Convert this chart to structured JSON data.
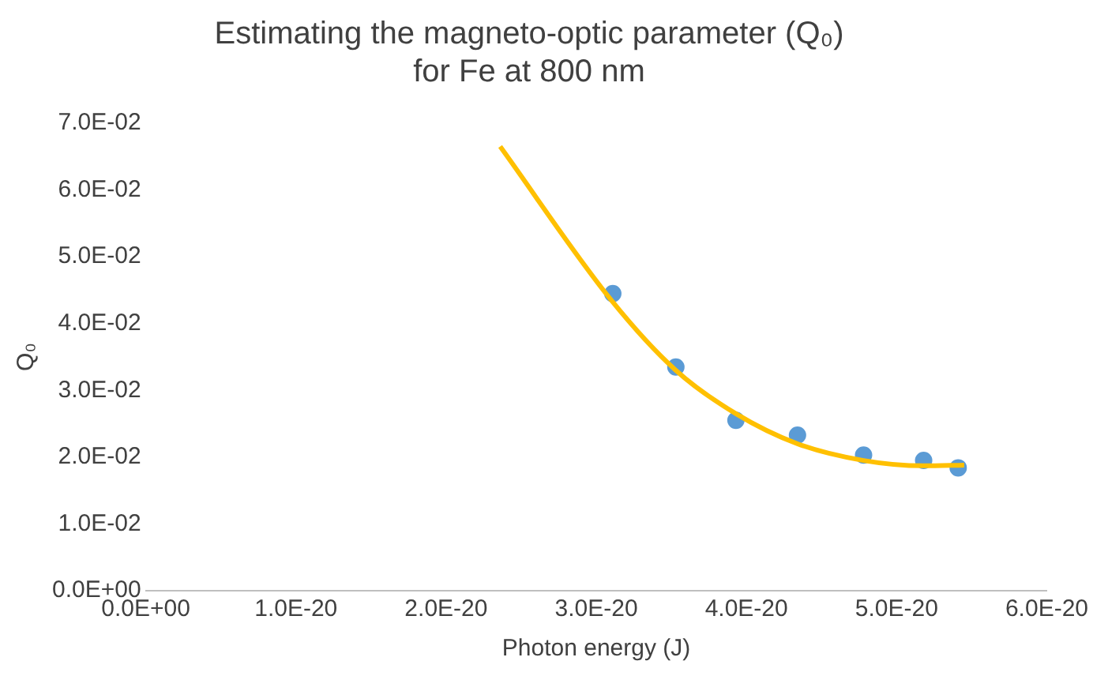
{
  "chart_data": {
    "type": "scatter",
    "title": "Estimating the magneto-optic parameter (Q₀) for Fe at 800 nm",
    "xlabel": "Photon energy (J)",
    "ylabel": "Q₀",
    "xlim": [
      0,
      6e-20
    ],
    "xticks": [
      {
        "value": 0,
        "label": "0.0E+00"
      },
      {
        "value": 1e-20,
        "label": "1.0E-20"
      },
      {
        "value": 2e-20,
        "label": "2.0E-20"
      },
      {
        "value": 3e-20,
        "label": "3.0E-20"
      },
      {
        "value": 4e-20,
        "label": "4.0E-20"
      },
      {
        "value": 5e-20,
        "label": "5.0E-20"
      },
      {
        "value": 6e-20,
        "label": "6.0E-20"
      }
    ],
    "ylim": [
      0,
      0.07
    ],
    "yticks": [
      {
        "value": 0,
        "label": "0.0E+00"
      },
      {
        "value": 0.01,
        "label": "1.0E-02"
      },
      {
        "value": 0.02,
        "label": "2.0E-02"
      },
      {
        "value": 0.03,
        "label": "3.0E-02"
      },
      {
        "value": 0.04,
        "label": "4.0E-02"
      },
      {
        "value": 0.05,
        "label": "5.0E-02"
      },
      {
        "value": 0.06,
        "label": "6.0E-02"
      },
      {
        "value": 0.07,
        "label": "7.0E-02"
      }
    ],
    "grid": false,
    "legend": false,
    "series": [
      {
        "type": "line",
        "color": "#ffc000",
        "marker": "none",
        "line_style": "solid",
        "x": [
          2.36e-20,
          3.1e-20,
          3.53e-20,
          3.93e-20,
          4.34e-20,
          4.78e-20,
          5.18e-20,
          5.45e-20
        ],
        "values": [
          0.0665,
          0.0435,
          0.033,
          0.0265,
          0.022,
          0.0195,
          0.0187,
          0.0188
        ]
      },
      {
        "color": "#5b9bd5",
        "marker": "circle",
        "x": [
          3.11e-20,
          3.53e-20,
          3.93e-20,
          4.34e-20,
          4.78e-20,
          5.18e-20,
          5.41e-20
        ],
        "values": [
          0.0445,
          0.0335,
          0.0255,
          0.0233,
          0.0203,
          0.0195,
          0.0184
        ]
      }
    ]
  }
}
